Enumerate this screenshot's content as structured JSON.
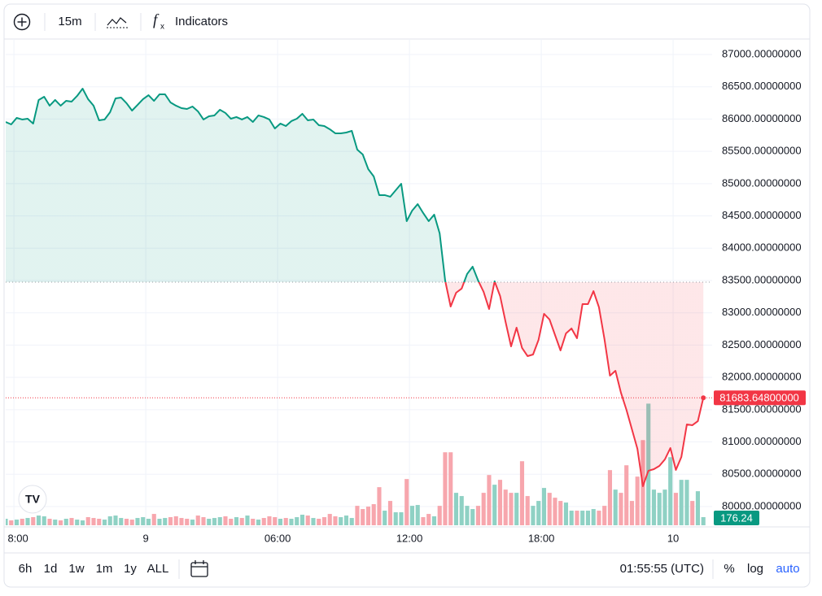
{
  "toolbar": {
    "interval": "15m",
    "indicators": "Indicators"
  },
  "range_buttons": [
    "6h",
    "1d",
    "1w",
    "1m",
    "1y",
    "ALL"
  ],
  "status": {
    "clock": "01:55:55 (UTC)",
    "percent": "%",
    "log": "log",
    "auto": "auto"
  },
  "chart_data": {
    "type": "baseline",
    "baseline": 83475,
    "up_color": "#089981",
    "down_color": "#f23645",
    "grid": true,
    "xlim": [
      0,
      128.6
    ],
    "xticks": [
      {
        "value": 1.5,
        "label": "8:00"
      },
      {
        "value": 25.5,
        "label": "9"
      },
      {
        "value": 49.5,
        "label": "06:00"
      },
      {
        "value": 73.5,
        "label": "12:00"
      },
      {
        "value": 97.5,
        "label": "18:00"
      },
      {
        "value": 121.5,
        "label": "10"
      }
    ],
    "ylim": [
      79685,
      87239
    ],
    "yticks": [
      {
        "value": 80000,
        "label": "80000.00000000"
      },
      {
        "value": 80500,
        "label": "80500.00000000"
      },
      {
        "value": 81000,
        "label": "81000.00000000"
      },
      {
        "value": 81500,
        "label": "81500.00000000"
      },
      {
        "value": 82000,
        "label": "82000.00000000"
      },
      {
        "value": 82500,
        "label": "82500.00000000"
      },
      {
        "value": 83000,
        "label": "83000.00000000"
      },
      {
        "value": 83500,
        "label": "83500.00000000"
      },
      {
        "value": 84000,
        "label": "84000.00000000"
      },
      {
        "value": 84500,
        "label": "84500.00000000"
      },
      {
        "value": 85000,
        "label": "85000.00000000"
      },
      {
        "value": 85500,
        "label": "85500.00000000"
      },
      {
        "value": 86000,
        "label": "86000.00000000"
      },
      {
        "value": 86500,
        "label": "86500.00000000"
      },
      {
        "value": 87000,
        "label": "87000.00000000"
      }
    ],
    "series": [
      {
        "values": [
          85955,
          85917,
          86018,
          85993,
          86005,
          85930,
          86295,
          86345,
          86207,
          86295,
          86207,
          86282,
          86270,
          86358,
          86471,
          86308,
          86207,
          85980,
          85993,
          86106,
          86320,
          86333,
          86245,
          86131,
          86219,
          86308,
          86370,
          86282,
          86383,
          86383,
          86257,
          86207,
          86169,
          86156,
          86194,
          86119,
          85993,
          86043,
          86056,
          86144,
          86094,
          86005,
          86031,
          85993,
          86031,
          85955,
          86056,
          86031,
          85993,
          85854,
          85930,
          85892,
          85968,
          86005,
          86081,
          85980,
          85993,
          85905,
          85892,
          85842,
          85779,
          85779,
          85791,
          85817,
          85527,
          85451,
          85225,
          85111,
          84822,
          84822,
          84797,
          84897,
          84998,
          84419,
          84583,
          84683,
          84545,
          84419,
          84520,
          84230,
          83500,
          83097,
          83311,
          83374,
          83601,
          83714,
          83500,
          83324,
          83059,
          83487,
          83261,
          82858,
          82480,
          82770,
          82455,
          82329,
          82354,
          82581,
          82984,
          82896,
          82656,
          82417,
          82682,
          82757,
          82606,
          83135,
          83135,
          83336,
          83085,
          82593,
          82027,
          82102,
          81763,
          81498,
          81196,
          80894,
          80315,
          80554,
          80579,
          80629,
          80730,
          80906,
          80567,
          80768,
          81272,
          81259,
          81322,
          81683.648
        ],
        "last_label": "81683.64800000"
      }
    ],
    "volume": {
      "vlim": [
        0,
        3000
      ],
      "up_color": "#8fd1c4",
      "down_color": "#f7a6ad",
      "values": [
        141,
        106,
        123,
        141,
        158,
        176,
        211,
        194,
        141,
        123,
        106,
        141,
        158,
        123,
        106,
        176,
        158,
        141,
        123,
        194,
        211,
        158,
        141,
        123,
        158,
        176,
        141,
        246,
        141,
        158,
        176,
        194,
        158,
        141,
        123,
        211,
        176,
        141,
        158,
        176,
        194,
        141,
        176,
        158,
        211,
        141,
        123,
        158,
        194,
        176,
        141,
        158,
        141,
        176,
        229,
        211,
        158,
        141,
        176,
        246,
        194,
        176,
        211,
        158,
        422,
        352,
        405,
        458,
        827,
        317,
        528,
        282,
        282,
        1003,
        422,
        440,
        176,
        246,
        194,
        422,
        1584,
        1584,
        704,
        634,
        422,
        352,
        422,
        704,
        1091,
        880,
        986,
        774,
        704,
        704,
        1390,
        634,
        422,
        528,
        810,
        704,
        598,
        528,
        493,
        317,
        317,
        317,
        317,
        352,
        317,
        422,
        1197,
        774,
        704,
        1302,
        528,
        1056,
        1848,
        2640,
        774,
        704,
        774,
        1478,
        704,
        986,
        986,
        528,
        739,
        176.24
      ]
    }
  }
}
